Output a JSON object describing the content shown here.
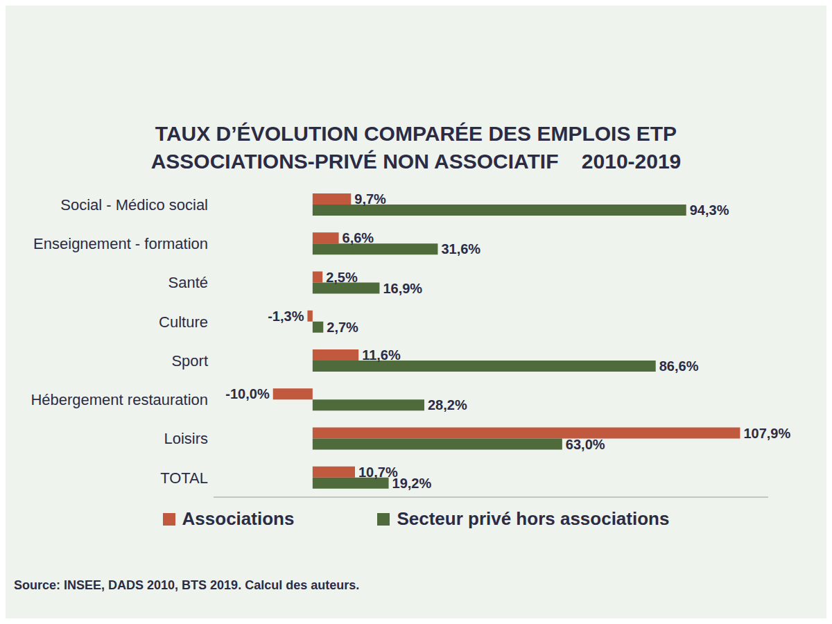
{
  "chart_data": {
    "type": "bar",
    "orientation": "horizontal",
    "title": "TAUX D’ÉVOLUTION COMPARÉE DES EMPLOIS ETP",
    "subtitle": "ASSOCIATIONS-PRIVÉ NON ASSOCIATIF    2010-2019",
    "source": "Source: INSEE, DADS 2010, BTS 2019. Calcul des auteurs.",
    "categories": [
      "Social - Médico social",
      "Enseignement - formation",
      "Santé",
      "Culture",
      "Sport",
      "Hébergement restauration",
      "Loisirs",
      "TOTAL"
    ],
    "series": [
      {
        "name": "Associations",
        "color": "#c0593d",
        "values": [
          9.7,
          6.6,
          2.5,
          -1.3,
          11.6,
          -10.0,
          107.9,
          10.7
        ],
        "value_labels": [
          "9,7%",
          "6,6%",
          "2,5%",
          "-1,3%",
          "11,6%",
          "-10,0%",
          "107,9%",
          "10,7%"
        ]
      },
      {
        "name": "Secteur privé hors associations",
        "color": "#4f6b3c",
        "values": [
          94.3,
          31.6,
          16.9,
          2.7,
          86.6,
          28.2,
          63.0,
          19.2
        ],
        "value_labels": [
          "94,3%",
          "31,6%",
          "16,9%",
          "2,7%",
          "86,6%",
          "28,2%",
          "63,0%",
          "19,2%"
        ]
      }
    ],
    "xlim": [
      -25,
      115
    ],
    "tick_labels": false,
    "data_labels": true,
    "legend": "bottom",
    "grid": false
  }
}
